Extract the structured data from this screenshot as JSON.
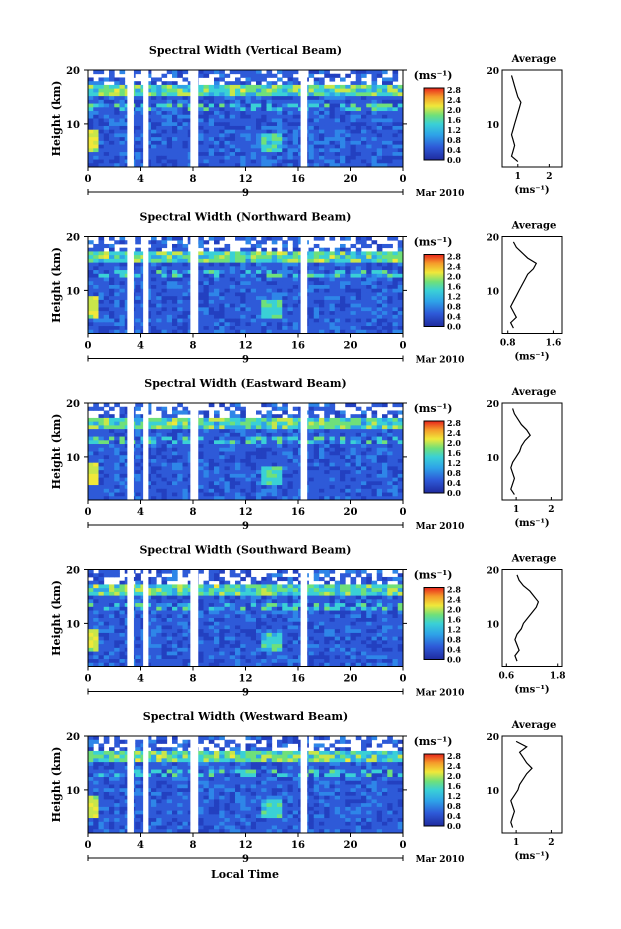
{
  "xlabel_bottom": "Local Time",
  "date_label": "Mar 2010",
  "date_day": "9",
  "unit_label": "(ms⁻¹)",
  "height_label": "Height (km)",
  "average_title": "Average",
  "colorbar_ticks": [
    "2.8",
    "2.4",
    "2.0",
    "1.6",
    "1.2",
    "0.8",
    "0.4",
    "0.0"
  ],
  "colors": {
    "low": "#1f2a9e",
    "mid": "#3ad0d6",
    "high": "#e8241c",
    "bg": "#ffffff"
  },
  "chart_data": [
    {
      "type": "heatmap",
      "title": "Spectral Width (Vertical Beam)",
      "ylabel": "Height (km)",
      "xlabel": "Local Time",
      "xticks": [
        "0",
        "4",
        "8",
        "12",
        "16",
        "20",
        "0"
      ],
      "yticks": [
        "20",
        "10"
      ],
      "xlim": [
        0,
        24
      ],
      "ylim": [
        2,
        20
      ],
      "colorbar": {
        "unit": "(ms⁻¹)",
        "min": 0.0,
        "max": 2.8,
        "ticks": [
          "2.8",
          "2.4",
          "2.0",
          "1.6",
          "1.2",
          "0.8",
          "0.4",
          "0.0"
        ]
      },
      "gaps_hours": [
        [
          3.0,
          3.5
        ],
        [
          4.2,
          4.6
        ],
        [
          7.8,
          8.4
        ],
        [
          16.2,
          16.7
        ]
      ],
      "average": {
        "title": "Average",
        "xlabel": "(ms⁻¹)",
        "xticks": [
          "1",
          "2"
        ],
        "xlim": [
          0.5,
          2.4
        ],
        "height": [
          3,
          4,
          5,
          6,
          7,
          8,
          9,
          10,
          11,
          12,
          13,
          14,
          15,
          16,
          17,
          18,
          19
        ],
        "value": [
          1.0,
          0.8,
          0.85,
          0.9,
          0.85,
          0.8,
          0.85,
          0.9,
          0.95,
          1.0,
          1.05,
          1.1,
          1.0,
          0.95,
          0.9,
          0.85,
          0.8
        ]
      }
    },
    {
      "type": "heatmap",
      "title": "Spectral Width (Northward Beam)",
      "ylabel": "Height (km)",
      "xlabel": "Local Time",
      "xticks": [
        "0",
        "4",
        "8",
        "12",
        "16",
        "20",
        "0"
      ],
      "yticks": [
        "20",
        "10"
      ],
      "xlim": [
        0,
        24
      ],
      "ylim": [
        2,
        20
      ],
      "colorbar": {
        "unit": "(ms⁻¹)",
        "min": 0.0,
        "max": 2.8,
        "ticks": [
          "2.8",
          "2.4",
          "2.0",
          "1.6",
          "1.2",
          "0.8",
          "0.4",
          "0.0"
        ]
      },
      "gaps_hours": [
        [
          3.0,
          3.5
        ],
        [
          4.2,
          4.6
        ],
        [
          7.8,
          8.4
        ],
        [
          16.2,
          16.7
        ]
      ],
      "average": {
        "title": "Average",
        "xlabel": "(ms⁻¹)",
        "xticks": [
          "0.8",
          "1.6"
        ],
        "xlim": [
          0.7,
          1.75
        ],
        "height": [
          3,
          4,
          5,
          6,
          7,
          8,
          9,
          10,
          11,
          12,
          13,
          14,
          15,
          16,
          17,
          18,
          19
        ],
        "value": [
          0.9,
          0.85,
          0.95,
          0.9,
          0.85,
          0.9,
          0.95,
          1.0,
          1.05,
          1.1,
          1.15,
          1.25,
          1.3,
          1.15,
          1.05,
          0.95,
          0.9
        ]
      }
    },
    {
      "type": "heatmap",
      "title": "Spectral Width (Eastward Beam)",
      "ylabel": "Height (km)",
      "xlabel": "Local Time",
      "xticks": [
        "0",
        "4",
        "8",
        "12",
        "16",
        "20",
        "0"
      ],
      "yticks": [
        "20",
        "10"
      ],
      "xlim": [
        0,
        24
      ],
      "ylim": [
        2,
        20
      ],
      "colorbar": {
        "unit": "(ms⁻¹)",
        "min": 0.0,
        "max": 2.8,
        "ticks": [
          "2.8",
          "2.4",
          "2.0",
          "1.6",
          "1.2",
          "0.8",
          "0.4",
          "0.0"
        ]
      },
      "gaps_hours": [
        [
          3.0,
          3.5
        ],
        [
          4.2,
          4.6
        ],
        [
          7.8,
          8.4
        ],
        [
          16.2,
          16.7
        ]
      ],
      "average": {
        "title": "Average",
        "xlabel": "(ms⁻¹)",
        "xticks": [
          "1",
          "2"
        ],
        "xlim": [
          0.6,
          2.3
        ],
        "height": [
          3,
          4,
          5,
          6,
          7,
          8,
          9,
          10,
          11,
          12,
          13,
          14,
          15,
          16,
          17,
          18,
          19
        ],
        "value": [
          0.95,
          0.85,
          0.9,
          0.95,
          0.9,
          0.85,
          0.9,
          1.0,
          1.1,
          1.15,
          1.25,
          1.4,
          1.3,
          1.15,
          1.05,
          0.95,
          0.9
        ]
      }
    },
    {
      "type": "heatmap",
      "title": "Spectral Width (Southward Beam)",
      "ylabel": "Height (km)",
      "xlabel": "Local Time",
      "xticks": [
        "0",
        "4",
        "8",
        "12",
        "16",
        "20",
        "0"
      ],
      "yticks": [
        "20",
        "10"
      ],
      "xlim": [
        0,
        24
      ],
      "ylim": [
        2,
        20
      ],
      "colorbar": {
        "unit": "(ms⁻¹)",
        "min": 0.0,
        "max": 2.8,
        "ticks": [
          "2.8",
          "2.4",
          "2.0",
          "1.6",
          "1.2",
          "0.8",
          "0.4",
          "0.0"
        ]
      },
      "gaps_hours": [
        [
          3.0,
          3.5
        ],
        [
          4.2,
          4.6
        ],
        [
          7.8,
          8.4
        ],
        [
          16.2,
          16.7
        ]
      ],
      "average": {
        "title": "Average",
        "xlabel": "(ms⁻¹)",
        "xticks": [
          "0.6",
          "1.8"
        ],
        "xlim": [
          0.5,
          1.9
        ],
        "height": [
          3,
          4,
          5,
          6,
          7,
          8,
          9,
          10,
          11,
          12,
          13,
          14,
          15,
          16,
          17,
          18,
          19
        ],
        "value": [
          0.85,
          0.8,
          0.9,
          0.85,
          0.8,
          0.85,
          0.95,
          1.0,
          1.1,
          1.2,
          1.3,
          1.35,
          1.25,
          1.15,
          1.0,
          0.9,
          0.85
        ]
      }
    },
    {
      "type": "heatmap",
      "title": "Spectral Width (Westward Beam)",
      "ylabel": "Height (km)",
      "xlabel": "Local Time",
      "xticks": [
        "0",
        "4",
        "8",
        "12",
        "16",
        "20",
        "0"
      ],
      "yticks": [
        "20",
        "10"
      ],
      "xlim": [
        0,
        24
      ],
      "ylim": [
        2,
        20
      ],
      "colorbar": {
        "unit": "(ms⁻¹)",
        "min": 0.0,
        "max": 2.8,
        "ticks": [
          "2.8",
          "2.4",
          "2.0",
          "1.6",
          "1.2",
          "0.8",
          "0.4",
          "0.0"
        ]
      },
      "gaps_hours": [
        [
          3.0,
          3.5
        ],
        [
          4.2,
          4.6
        ],
        [
          7.8,
          8.4
        ],
        [
          16.2,
          16.7
        ]
      ],
      "average": {
        "title": "Average",
        "xlabel": "(ms⁻¹)",
        "xticks": [
          "1",
          "2"
        ],
        "xlim": [
          0.6,
          2.3
        ],
        "height": [
          3,
          4,
          5,
          6,
          7,
          8,
          9,
          10,
          11,
          12,
          13,
          14,
          15,
          16,
          17,
          18,
          19
        ],
        "value": [
          0.9,
          0.85,
          0.9,
          0.95,
          0.9,
          0.85,
          0.95,
          1.05,
          1.1,
          1.2,
          1.3,
          1.45,
          1.3,
          1.2,
          1.1,
          1.3,
          1.0
        ]
      }
    }
  ]
}
